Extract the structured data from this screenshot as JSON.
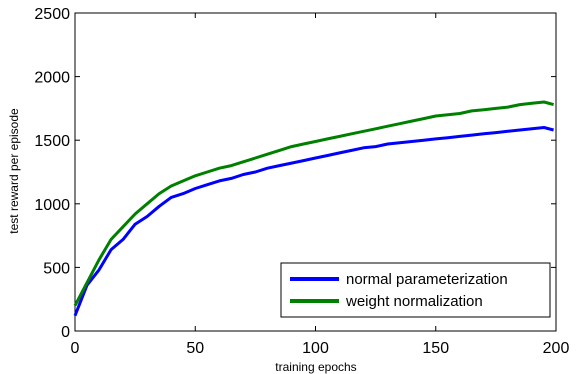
{
  "chart_data": {
    "type": "line",
    "title": "",
    "xlabel": "training epochs",
    "ylabel": "test reward per episode",
    "xlim": [
      0,
      200
    ],
    "ylim": [
      0,
      2500
    ],
    "xticks": [
      0,
      50,
      100,
      150,
      200
    ],
    "yticks": [
      0,
      500,
      1000,
      1500,
      2000,
      2500
    ],
    "grid": false,
    "legend_position": "bottom-right",
    "series": [
      {
        "name": "normal parameterization",
        "color": "#0000ff",
        "x": [
          0,
          5,
          10,
          15,
          20,
          25,
          30,
          35,
          40,
          45,
          50,
          55,
          60,
          65,
          70,
          75,
          80,
          85,
          90,
          95,
          100,
          105,
          110,
          115,
          120,
          125,
          130,
          135,
          140,
          145,
          150,
          155,
          160,
          165,
          170,
          175,
          180,
          185,
          190,
          195,
          199
        ],
        "y": [
          120,
          360,
          480,
          640,
          720,
          840,
          900,
          980,
          1050,
          1080,
          1120,
          1150,
          1180,
          1200,
          1230,
          1250,
          1280,
          1300,
          1320,
          1340,
          1360,
          1380,
          1400,
          1420,
          1440,
          1450,
          1470,
          1480,
          1490,
          1500,
          1510,
          1520,
          1530,
          1540,
          1550,
          1560,
          1570,
          1580,
          1590,
          1600,
          1580
        ]
      },
      {
        "name": "weight normalization",
        "color": "#008000",
        "x": [
          0,
          5,
          10,
          15,
          20,
          25,
          30,
          35,
          40,
          45,
          50,
          55,
          60,
          65,
          70,
          75,
          80,
          85,
          90,
          95,
          100,
          105,
          110,
          115,
          120,
          125,
          130,
          135,
          140,
          145,
          150,
          155,
          160,
          165,
          170,
          175,
          180,
          185,
          190,
          195,
          199
        ],
        "y": [
          200,
          380,
          560,
          720,
          820,
          920,
          1000,
          1080,
          1140,
          1180,
          1220,
          1250,
          1280,
          1300,
          1330,
          1360,
          1390,
          1420,
          1450,
          1470,
          1490,
          1510,
          1530,
          1550,
          1570,
          1590,
          1610,
          1630,
          1650,
          1670,
          1690,
          1700,
          1710,
          1730,
          1740,
          1750,
          1760,
          1780,
          1790,
          1800,
          1780
        ]
      }
    ]
  }
}
